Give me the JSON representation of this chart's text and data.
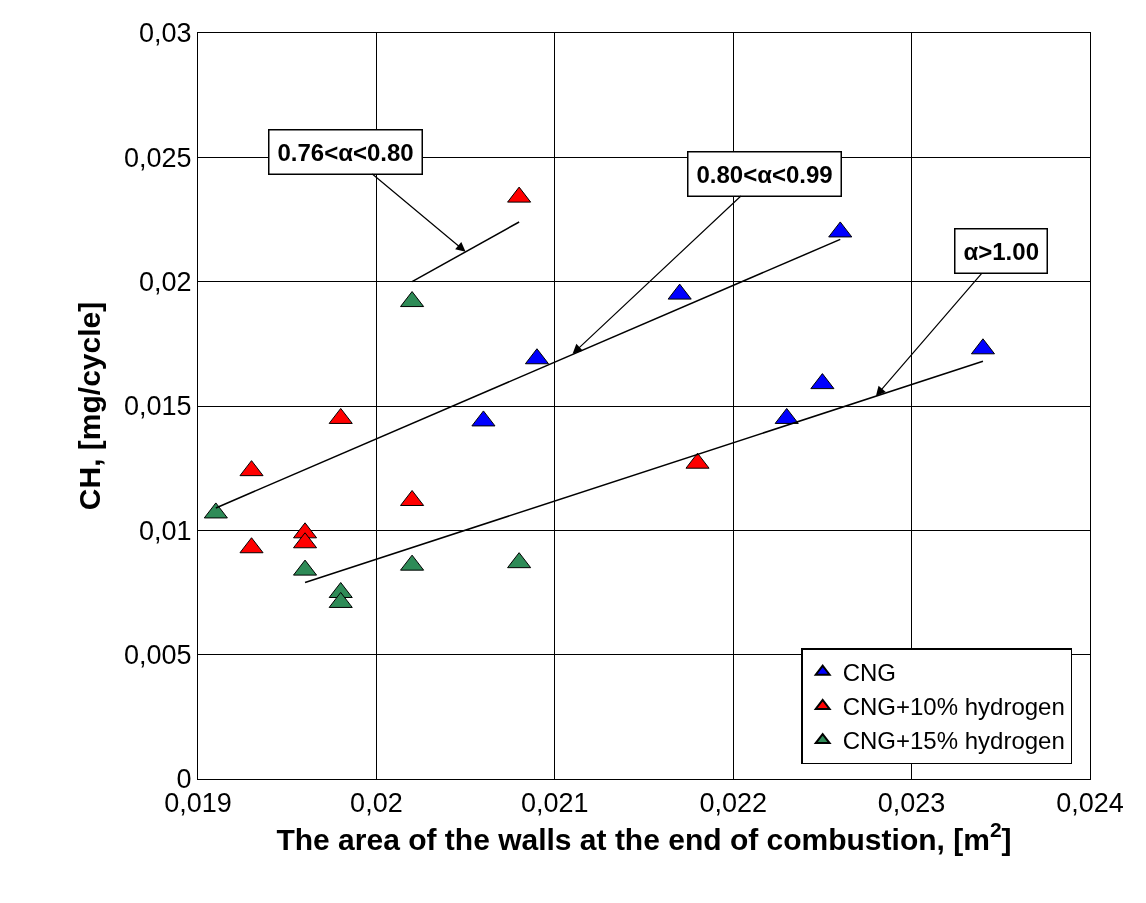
{
  "chart_data": {
    "type": "scatter",
    "xlabel": "The area of the walls at the end of combustion, [m$^{2}$]",
    "ylabel": "CH, [mg/cycle]",
    "xlim": [
      0.019,
      0.024
    ],
    "ylim": [
      0,
      0.03
    ],
    "xticks": [
      {
        "value": 0.019,
        "label": "0,019"
      },
      {
        "value": 0.02,
        "label": "0,02"
      },
      {
        "value": 0.021,
        "label": "0,021"
      },
      {
        "value": 0.022,
        "label": "0,022"
      },
      {
        "value": 0.023,
        "label": "0,023"
      },
      {
        "value": 0.024,
        "label": "0,024"
      }
    ],
    "yticks": [
      {
        "value": 0,
        "label": "0"
      },
      {
        "value": 0.005,
        "label": "0,005"
      },
      {
        "value": 0.01,
        "label": "0,01"
      },
      {
        "value": 0.015,
        "label": "0,015"
      },
      {
        "value": 0.02,
        "label": "0,02"
      },
      {
        "value": 0.025,
        "label": "0,025"
      },
      {
        "value": 0.03,
        "label": "0,03"
      }
    ],
    "grid": true,
    "legend": "bottom right",
    "marker": "triangle",
    "series": [
      {
        "name": "CNG",
        "color": "#0000ff",
        "x": [
          0.0217,
          0.0226,
          0.0209,
          0.0206,
          0.0223,
          0.0225,
          0.0234
        ],
        "values": [
          0.0195,
          0.022,
          0.0169,
          0.0144,
          0.0145,
          0.0159,
          0.0173
        ]
      },
      {
        "name": "CNG+10% hydrogen",
        "color": "#ff0000",
        "x": [
          0.0208,
          0.0198,
          0.0193,
          0.0193,
          0.0196,
          0.0196,
          0.0202,
          0.0218
        ],
        "values": [
          0.0234,
          0.0145,
          0.0124,
          0.0093,
          0.0099,
          0.0095,
          0.0112,
          0.0127
        ]
      },
      {
        "name": "CNG+15% hydrogen",
        "color": "#2e8b57",
        "x": [
          0.0202,
          0.0191,
          0.0196,
          0.0198,
          0.0198,
          0.0202,
          0.0208
        ],
        "values": [
          0.0192,
          0.0107,
          0.0084,
          0.0075,
          0.0071,
          0.0086,
          0.0087
        ]
      },
      {
        "type": "line",
        "marker": "none",
        "color": "#000000",
        "x": [
          0.0202,
          0.0208
        ],
        "values": [
          0.02,
          0.0224
        ]
      },
      {
        "type": "line",
        "marker": "none",
        "color": "#000000",
        "x": [
          0.0191,
          0.0226
        ],
        "values": [
          0.0109,
          0.0217
        ]
      },
      {
        "type": "line",
        "marker": "none",
        "color": "#000000",
        "x": [
          0.0196,
          0.0234
        ],
        "values": [
          0.0079,
          0.0168
        ]
      }
    ],
    "annotations": [
      {
        "text": "0.76<α<0.80",
        "x": 0.0205,
        "y": 0.0212
      },
      {
        "text": "0.80<α<0.99",
        "x": 0.0211,
        "y": 0.0171
      },
      {
        "text": "α>1.00",
        "x": 0.0228,
        "y": 0.0154
      }
    ]
  }
}
